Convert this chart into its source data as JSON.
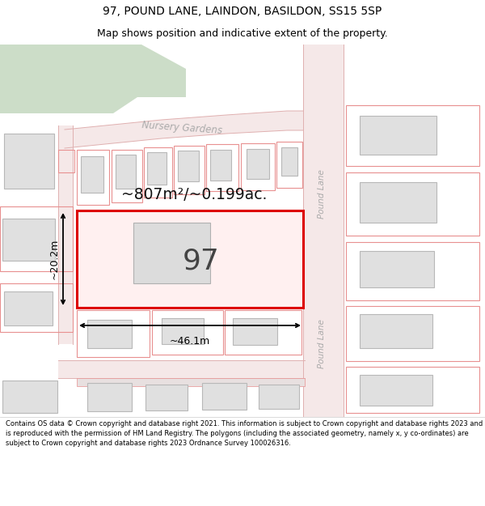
{
  "title_line1": "97, POUND LANE, LAINDON, BASILDON, SS15 5SP",
  "title_line2": "Map shows position and indicative extent of the property.",
  "footer_text": "Contains OS data © Crown copyright and database right 2021. This information is subject to Crown copyright and database rights 2023 and is reproduced with the permission of HM Land Registry. The polygons (including the associated geometry, namely x, y co-ordinates) are subject to Crown copyright and database rights 2023 Ordnance Survey 100026316.",
  "bg_color": "#ffffff",
  "map_bg": "#f0efea",
  "road_fill": "#f5e8e8",
  "road_line": "#e0b0b0",
  "building_fill": "#e0e0e0",
  "building_outline": "#b8b8b8",
  "parcel_outline": "#e89090",
  "highlight_fill": "#fff0f0",
  "highlight_outline": "#dd0000",
  "green_fill": "#ccddc8",
  "subject_label": "97",
  "area_label": "~807m²/~0.199ac.",
  "width_label": "~46.1m",
  "height_label": "~20.2m",
  "street1": "Nursery Gardens",
  "street2": "Pound Lane",
  "street3": "Pound Lane",
  "title_fontsize": 10,
  "subtitle_fontsize": 9,
  "footer_fontsize": 6.0
}
